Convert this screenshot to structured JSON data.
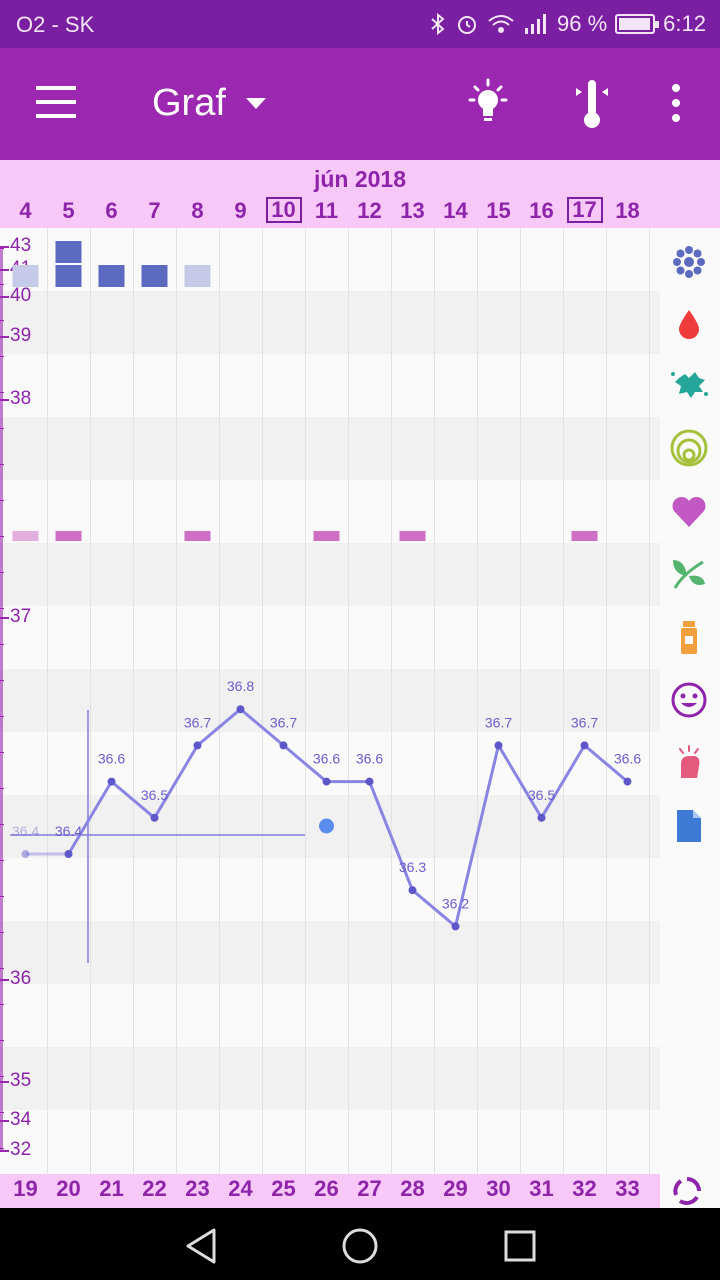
{
  "status_bar": {
    "carrier": "O2 - SK",
    "battery": "96 %",
    "battery_level": 0.96,
    "time": "6:12"
  },
  "app_bar": {
    "title": "Graf",
    "icons": [
      "menu-icon",
      "dropdown-icon",
      "lightbulb-icon",
      "thermometer-icon",
      "overflow-icon"
    ]
  },
  "calendar": {
    "month": "jún 2018",
    "days": [
      {
        "d": "4",
        "boxed": false
      },
      {
        "d": "5",
        "boxed": false
      },
      {
        "d": "6",
        "boxed": false
      },
      {
        "d": "7",
        "boxed": false
      },
      {
        "d": "8",
        "boxed": false
      },
      {
        "d": "9",
        "boxed": false
      },
      {
        "d": "10",
        "boxed": true
      },
      {
        "d": "11",
        "boxed": false
      },
      {
        "d": "12",
        "boxed": false
      },
      {
        "d": "13",
        "boxed": false
      },
      {
        "d": "14",
        "boxed": false
      },
      {
        "d": "15",
        "boxed": false
      },
      {
        "d": "16",
        "boxed": false
      },
      {
        "d": "17",
        "boxed": true
      },
      {
        "d": "18",
        "boxed": false
      }
    ],
    "cycle_days": [
      "19",
      "20",
      "21",
      "22",
      "23",
      "24",
      "25",
      "26",
      "27",
      "28",
      "29",
      "30",
      "31",
      "32",
      "33"
    ]
  },
  "chart_data": {
    "type": "line",
    "y_tick_labels": [
      "43",
      "41",
      "40",
      "39",
      "38",
      "37",
      "36",
      "35",
      "34",
      "32"
    ],
    "temperatures": [
      {
        "day": 19,
        "label": "36.4",
        "value": 36.4,
        "faded": true
      },
      {
        "day": 20,
        "label": "36.4",
        "value": 36.4
      },
      {
        "day": 21,
        "label": "36.6",
        "value": 36.6
      },
      {
        "day": 22,
        "label": "36.5",
        "value": 36.5
      },
      {
        "day": 23,
        "label": "36.7",
        "value": 36.7
      },
      {
        "day": 24,
        "label": "36.8",
        "value": 36.8
      },
      {
        "day": 25,
        "label": "36.7",
        "value": 36.7
      },
      {
        "day": 26,
        "label": "36.6",
        "value": 36.6
      },
      {
        "day": 27,
        "label": "36.6",
        "value": 36.6
      },
      {
        "day": 28,
        "label": "36.3",
        "value": 36.3
      },
      {
        "day": 29,
        "label": "36.2",
        "value": 36.2
      },
      {
        "day": 30,
        "label": "36.7",
        "value": 36.7
      },
      {
        "day": 31,
        "label": "36.5",
        "value": 36.5
      },
      {
        "day": 32,
        "label": "36.7",
        "value": 36.7
      },
      {
        "day": 33,
        "label": "36.6",
        "value": 36.6
      }
    ],
    "current_day_marker": {
      "day": 26
    },
    "menstruation_blocks": [
      {
        "day": 19,
        "row": 2,
        "level": "light"
      },
      {
        "day": 20,
        "row": 1,
        "level": "dark"
      },
      {
        "day": 20,
        "row": 2,
        "level": "dark"
      },
      {
        "day": 21,
        "row": 2,
        "level": "dark"
      },
      {
        "day": 22,
        "row": 2,
        "level": "dark"
      },
      {
        "day": 23,
        "row": 2,
        "level": "light"
      }
    ],
    "intercourse_marks": [
      19,
      20,
      23,
      26,
      28,
      32
    ],
    "colors": {
      "line": "#8a84e2",
      "point": "#5e57c9",
      "block_dark": "#5c6bc0",
      "block_light": "#c5cae9",
      "intercourse": "#ce6fc6",
      "marker": "#5b8def"
    }
  },
  "side_icons": [
    "flower-icon",
    "drop-icon",
    "splash-icon",
    "cervix-icon",
    "heart-icon",
    "leaf-icon",
    "pill-bottle-icon",
    "smiley-icon",
    "hand-icon",
    "note-icon"
  ],
  "footer_icon": "cycle-icon",
  "nav": [
    "back-icon",
    "home-icon",
    "recents-icon"
  ]
}
